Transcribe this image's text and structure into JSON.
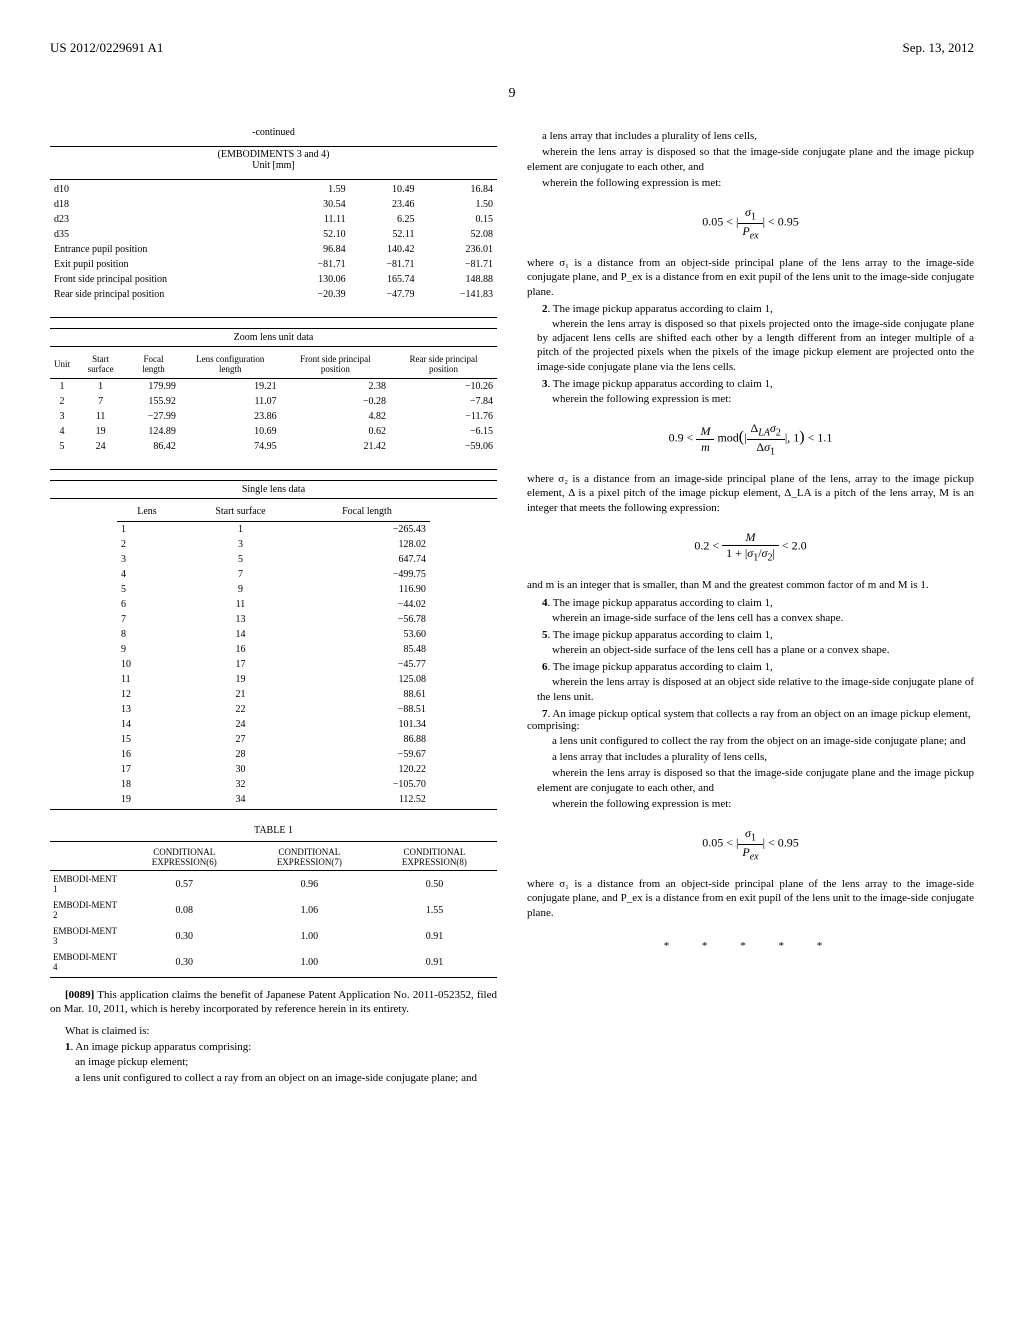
{
  "header": {
    "left": "US 2012/0229691 A1",
    "right": "Sep. 13, 2012"
  },
  "page_number": "9",
  "left_col": {
    "continued_label": "-continued",
    "units_subtitle": "(EMBODIMENTS 3 and 4)\nUnit [mm]",
    "misc_rows": [
      {
        "label": "d10",
        "v1": "1.59",
        "v2": "10.49",
        "v3": "16.84"
      },
      {
        "label": "d18",
        "v1": "30.54",
        "v2": "23.46",
        "v3": "1.50"
      },
      {
        "label": "d23",
        "v1": "11.11",
        "v2": "6.25",
        "v3": "0.15"
      },
      {
        "label": "d35",
        "v1": "52.10",
        "v2": "52.11",
        "v3": "52.08"
      },
      {
        "label": "Entrance pupil position",
        "v1": "96.84",
        "v2": "140.42",
        "v3": "236.01"
      },
      {
        "label": "Exit pupil position",
        "v1": "−81.71",
        "v2": "−81.71",
        "v3": "−81.71"
      },
      {
        "label": "Front side principal position",
        "v1": "130.06",
        "v2": "165.74",
        "v3": "148.88"
      },
      {
        "label": "Rear side principal position",
        "v1": "−20.39",
        "v2": "−47.79",
        "v3": "−141.83"
      }
    ],
    "zoom_header": "Zoom lens unit data",
    "zoom_cols": [
      "Unit",
      "Start surface",
      "Focal length",
      "Lens configuration length",
      "Front side principal position",
      "Rear side principal position"
    ],
    "zoom_rows": [
      {
        "c1": "1",
        "c2": "1",
        "c3": "179.99",
        "c4": "19.21",
        "c5": "2.38",
        "c6": "−10.26"
      },
      {
        "c1": "2",
        "c2": "7",
        "c3": "155.92",
        "c4": "11.07",
        "c5": "−0.28",
        "c6": "−7.84"
      },
      {
        "c1": "3",
        "c2": "11",
        "c3": "−27.99",
        "c4": "23.86",
        "c5": "4.82",
        "c6": "−11.76"
      },
      {
        "c1": "4",
        "c2": "19",
        "c3": "124.89",
        "c4": "10.69",
        "c5": "0.62",
        "c6": "−6.15"
      },
      {
        "c1": "5",
        "c2": "24",
        "c3": "86.42",
        "c4": "74.95",
        "c5": "21.42",
        "c6": "−59.06"
      }
    ],
    "single_header": "Single lens data",
    "single_cols": [
      "Lens",
      "Start surface",
      "Focal length"
    ],
    "single_rows": [
      {
        "c1": "1",
        "c2": "1",
        "c3": "−265.43"
      },
      {
        "c1": "2",
        "c2": "3",
        "c3": "128.02"
      },
      {
        "c1": "3",
        "c2": "5",
        "c3": "647.74"
      },
      {
        "c1": "4",
        "c2": "7",
        "c3": "−499.75"
      },
      {
        "c1": "5",
        "c2": "9",
        "c3": "116.90"
      },
      {
        "c1": "6",
        "c2": "11",
        "c3": "−44.02"
      },
      {
        "c1": "7",
        "c2": "13",
        "c3": "−56.78"
      },
      {
        "c1": "8",
        "c2": "14",
        "c3": "53.60"
      },
      {
        "c1": "9",
        "c2": "16",
        "c3": "85.48"
      },
      {
        "c1": "10",
        "c2": "17",
        "c3": "−45.77"
      },
      {
        "c1": "11",
        "c2": "19",
        "c3": "125.08"
      },
      {
        "c1": "12",
        "c2": "21",
        "c3": "88.61"
      },
      {
        "c1": "13",
        "c2": "22",
        "c3": "−88.51"
      },
      {
        "c1": "14",
        "c2": "24",
        "c3": "101.34"
      },
      {
        "c1": "15",
        "c2": "27",
        "c3": "86.88"
      },
      {
        "c1": "16",
        "c2": "28",
        "c3": "−59.67"
      },
      {
        "c1": "17",
        "c2": "30",
        "c3": "120.22"
      },
      {
        "c1": "18",
        "c2": "32",
        "c3": "−105.70"
      },
      {
        "c1": "19",
        "c2": "34",
        "c3": "112.52"
      }
    ],
    "table1_label": "TABLE 1",
    "table1_cols": [
      "",
      "CONDITIONAL EXPRESSION(6)",
      "CONDITIONAL EXPRESSION(7)",
      "CONDITIONAL EXPRESSION(8)"
    ],
    "table1_rows": [
      {
        "c1": "EMBODI-MENT 1",
        "c2": "0.57",
        "c3": "0.96",
        "c4": "0.50"
      },
      {
        "c1": "EMBODI-MENT 2",
        "c2": "0.08",
        "c3": "1.06",
        "c4": "1.55"
      },
      {
        "c1": "EMBODI-MENT 3",
        "c2": "0.30",
        "c3": "1.00",
        "c4": "0.91"
      },
      {
        "c1": "EMBODI-MENT 4",
        "c2": "0.30",
        "c3": "1.00",
        "c4": "0.91"
      }
    ],
    "para_0089_label": "[0089]",
    "para_0089": "This application claims the benefit of Japanese Patent Application No. 2011-052352, filed on Mar. 10, 2011, which is hereby incorporated by reference herein in its entirety.",
    "what_claimed": "What is claimed is:",
    "claim1_num": "1",
    "claim1": ". An image pickup apparatus comprising:",
    "claim1_a": "an image pickup element;",
    "claim1_b": "a lens unit configured to collect a ray from an object on an image-side conjugate plane; and"
  },
  "right_col": {
    "claim1_c": "a lens array that includes a plurality of lens cells,",
    "claim1_d": "wherein the lens array is disposed so that the image-side conjugate plane and the image pickup element are conjugate to each other, and",
    "claim1_e": "wherein the following expression is met:",
    "formula1": "0.05 < | σ₁ / P_ex | < 0.95",
    "claim1_f": "where σ₁ is a distance from an object-side principal plane of the lens array to the image-side conjugate plane, and P_ex is a distance from en exit pupil of the lens unit to the image-side conjugate plane.",
    "claim2_num": "2",
    "claim2": ". The image pickup apparatus according to claim 1,",
    "claim2_a": "wherein the lens array is disposed so that pixels projected onto the image-side conjugate plane by adjacent lens cells are shifted each other by a length different from an integer multiple of a pitch of the projected pixels when the pixels of the image pickup element are projected onto the image-side conjugate plane via the lens cells.",
    "claim3_num": "3",
    "claim3": ". The image pickup apparatus according to claim 1,",
    "claim3_a": "wherein the following expression is met:",
    "formula2": "0.9 < (M/m) mod(| Δ_LA σ₂ / Δσ₁ |, 1) < 1.1",
    "claim3_b": "where σ₂ is a distance from an image-side principal plane of the lens, array to the image pickup element, Δ is a pixel pitch of the image pickup element, Δ_LA is a pitch of the lens array, M is an integer that meets the following expression:",
    "formula3": "0.2 < M / (1 + |σ₁/σ₂|) < 2.0",
    "claim3_c": "and m is an integer that is smaller, than M and the greatest common factor of m and M is 1.",
    "claim4_num": "4",
    "claim4": ". The image pickup apparatus according to claim 1,",
    "claim4_a": "wherein an image-side surface of the lens cell has a convex shape.",
    "claim5_num": "5",
    "claim5": ". The image pickup apparatus according to claim 1,",
    "claim5_a": "wherein an object-side surface of the lens cell has a plane or a convex shape.",
    "claim6_num": "6",
    "claim6": ". The image pickup apparatus according to claim 1,",
    "claim6_a": "wherein the lens array is disposed at an object side relative to the image-side conjugate plane of the lens unit.",
    "claim7_num": "7",
    "claim7": ". An image pickup optical system that collects a ray from an object on an image pickup element, comprising:",
    "claim7_a": "a lens unit configured to collect the ray from the object on an image-side conjugate plane; and",
    "claim7_b": "a lens array that includes a plurality of lens cells,",
    "claim7_c": "wherein the lens array is disposed so that the image-side conjugate plane and the image pickup element are conjugate to each other, and",
    "claim7_d": "wherein the following expression is met:",
    "formula4": "0.05 < | σ₁ / P_ex | < 0.95",
    "claim7_e": "where σ₁ is a distance from an object-side principal plane of the lens array to the image-side conjugate plane, and P_ex is a distance from en exit pupil of the lens unit to the image-side conjugate plane.",
    "stars": "* * * * *"
  }
}
